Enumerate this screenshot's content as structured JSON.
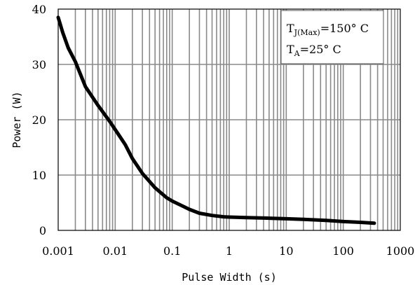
{
  "chart_data": {
    "type": "line",
    "xlabel": "Pulse Width (s)",
    "ylabel": "Power (W)",
    "xscale": "log",
    "xlim": [
      0.001,
      1000
    ],
    "ylim": [
      0,
      40
    ],
    "grid": true,
    "x_tick_labels": [
      "0.001",
      "0.01",
      "0.1",
      "1",
      "10",
      "100",
      "1000"
    ],
    "y_tick_labels": [
      "0",
      "10",
      "20",
      "30",
      "40"
    ],
    "annotation": {
      "line1": {
        "main": "T",
        "sub": "J(Max)",
        "tail": "=150° C"
      },
      "line2": {
        "main": "T",
        "sub": "A",
        "tail": "=25° C"
      }
    },
    "series": [
      {
        "color": "#000000",
        "x": [
          0.001,
          0.0012,
          0.0015,
          0.002,
          0.003,
          0.005,
          0.008,
          0.012,
          0.015,
          0.02,
          0.03,
          0.05,
          0.08,
          0.1,
          0.2,
          0.3,
          0.5,
          0.8,
          1,
          2,
          5,
          10,
          20,
          50,
          100,
          200,
          350
        ],
        "y": [
          38.5,
          35.8,
          33,
          30.5,
          26,
          22.6,
          19.7,
          17,
          15.5,
          13,
          10.3,
          7.7,
          5.9,
          5.3,
          3.8,
          3.1,
          2.7,
          2.45,
          2.4,
          2.3,
          2.2,
          2.1,
          2.0,
          1.8,
          1.6,
          1.45,
          1.3
        ]
      }
    ]
  }
}
